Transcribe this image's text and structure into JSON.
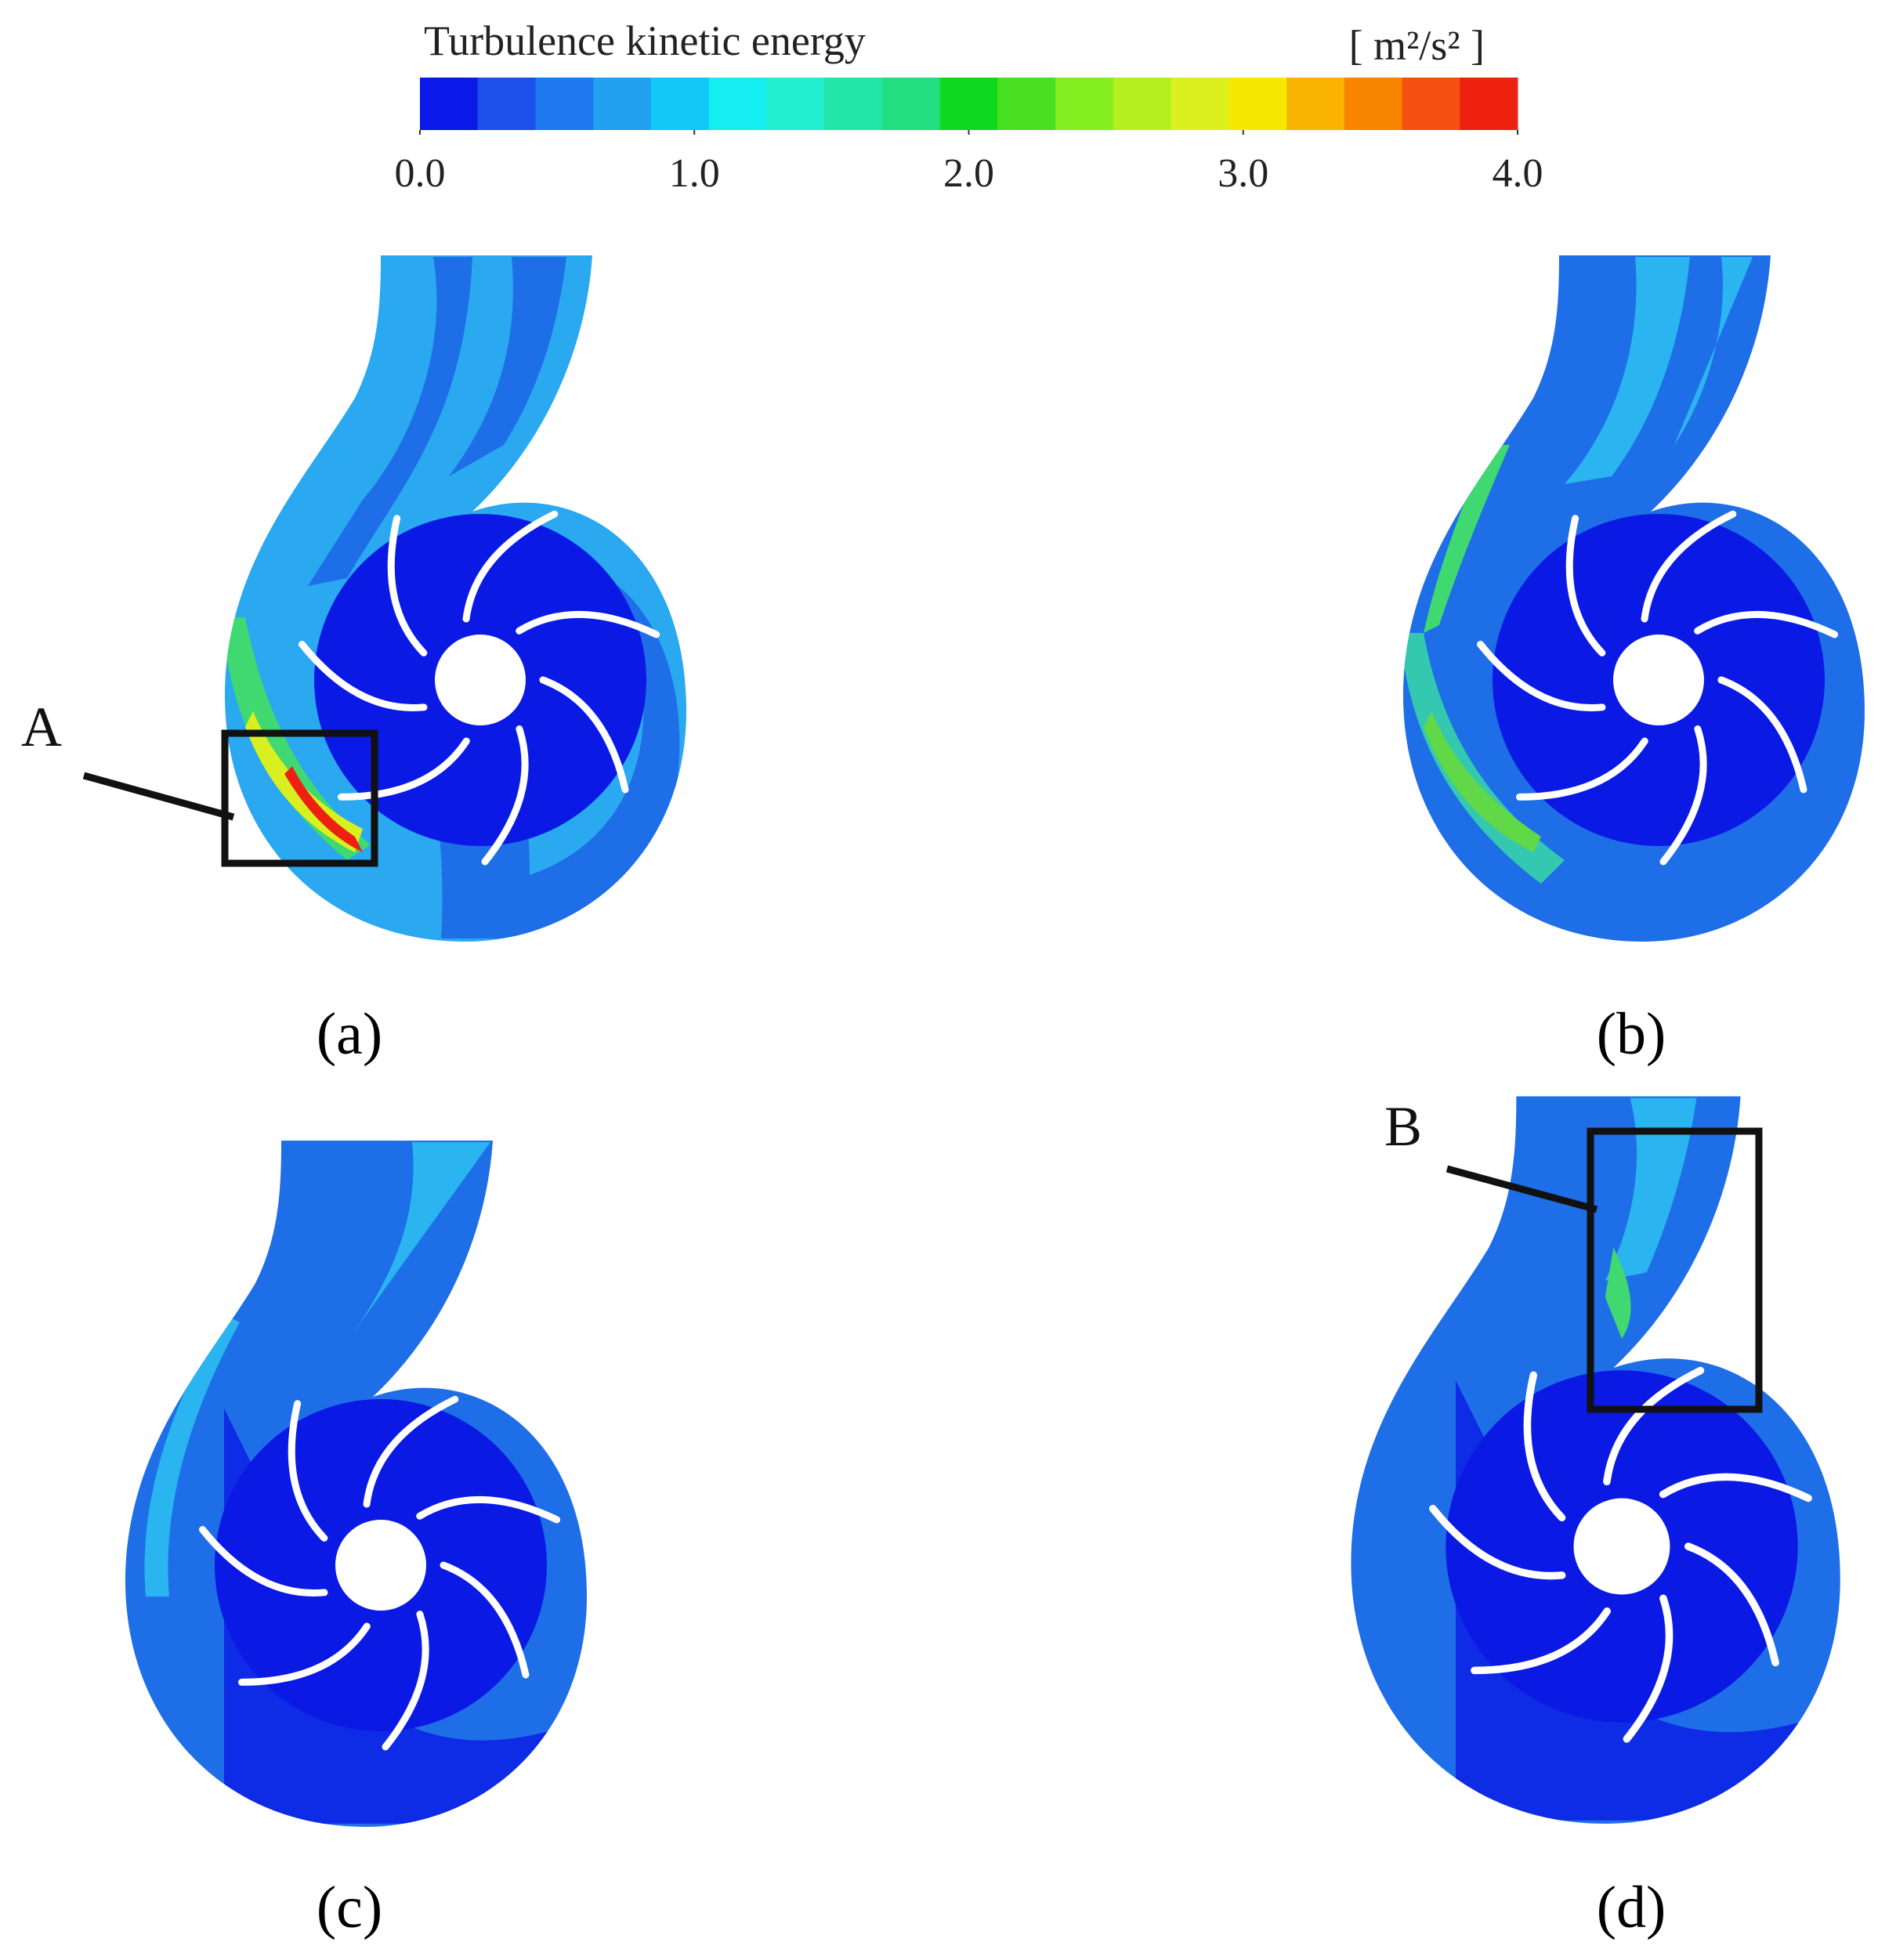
{
  "colorbar": {
    "title": "Turbulence kinetic energy",
    "unit": "[ m²/s² ]",
    "range": [
      0,
      4
    ],
    "ticks": [
      {
        "value": 0,
        "label": "0.0"
      },
      {
        "value": 1,
        "label": "1.0"
      },
      {
        "value": 2,
        "label": "2.0"
      },
      {
        "value": 3,
        "label": "3.0"
      },
      {
        "value": 4,
        "label": "4.0"
      }
    ],
    "colors": [
      "#0a1ae8",
      "#1c50ea",
      "#1e78f0",
      "#22a0f2",
      "#12c8f8",
      "#14eef0",
      "#22eed0",
      "#22e6a8",
      "#22de80",
      "#10d820",
      "#48e020",
      "#84ee20",
      "#b4f020",
      "#dcf020",
      "#f8e800",
      "#f8b400",
      "#f88400",
      "#f45010",
      "#ee2010"
    ]
  },
  "panels": [
    {
      "label": "(a)"
    },
    {
      "label": "(b)"
    },
    {
      "label": "(c)"
    },
    {
      "label": "(d)"
    }
  ],
  "annotations": [
    {
      "text": "A"
    },
    {
      "text": "B"
    }
  ]
}
